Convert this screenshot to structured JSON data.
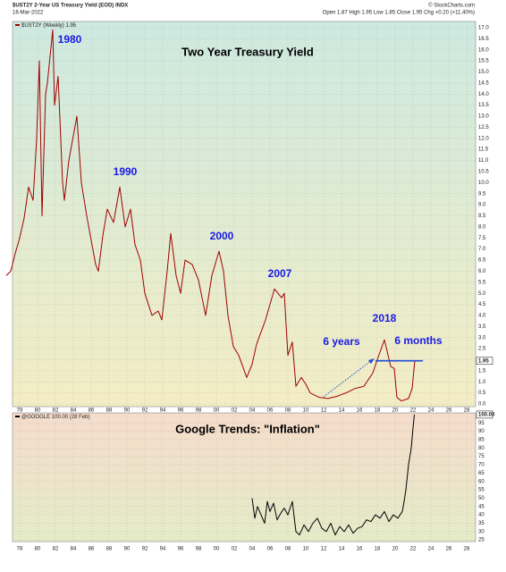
{
  "header": {
    "symbol": "$UST2Y 2-Year US Treasury Yield (EOD) INDX",
    "date": "16-Mar-2022",
    "quote": "Open 1.87  High 1.95  Low 1.85  Close 1.95  Chg +0.20 (+11.40%)",
    "credit": "© StockCharts.com"
  },
  "chart_data": [
    {
      "type": "line",
      "title": "Two Year Treasury Yield",
      "annotations": [
        "1980",
        "1990",
        "2000",
        "2007",
        "2018",
        "6 years",
        "6 months"
      ],
      "x": [
        1976.5,
        1977,
        1977.5,
        1978,
        1978.5,
        1979,
        1979.5,
        1979.9,
        1980.2,
        1980.5,
        1980.9,
        1981.1,
        1981.7,
        1981.9,
        1982.3,
        1982.8,
        1983,
        1983.5,
        1984.4,
        1984.9,
        1985.5,
        1986.5,
        1986.8,
        1987.3,
        1987.8,
        1988.5,
        1989.2,
        1989.8,
        1990.4,
        1990.9,
        1991.5,
        1992,
        1992.8,
        1993.5,
        1993.9,
        1994.5,
        1994.9,
        1995.5,
        1996,
        1996.5,
        1997.3,
        1998,
        1998.8,
        1999.5,
        2000.3,
        2000.8,
        2001.3,
        2001.9,
        2002.5,
        2003.4,
        2004,
        2004.5,
        2005.5,
        2006.5,
        2007.3,
        2007.6,
        2008,
        2008.5,
        2008.9,
        2009.5,
        2010,
        2010.5,
        2011.5,
        2012.5,
        2013.5,
        2014.5,
        2015.5,
        2016.5,
        2017.5,
        2018,
        2018.8,
        2019.5,
        2019.9,
        2020.2,
        2020.7,
        2021.5,
        2021.9,
        2022.2
      ],
      "series": [
        {
          "name": "$UST2Y (Weekly) 1.95",
          "color": "#a00000",
          "values": [
            5.8,
            6.0,
            6.8,
            7.5,
            8.4,
            9.8,
            9.2,
            12.0,
            15.5,
            8.5,
            14.0,
            14.5,
            16.9,
            13.5,
            14.8,
            10.0,
            9.2,
            11.0,
            13.0,
            10.0,
            8.5,
            6.3,
            6.0,
            7.6,
            8.8,
            8.2,
            9.8,
            8.0,
            8.8,
            7.2,
            6.5,
            5.0,
            4.0,
            4.2,
            3.8,
            6.0,
            7.7,
            5.8,
            5.0,
            6.5,
            6.3,
            5.6,
            4.0,
            5.8,
            6.9,
            6.0,
            4.0,
            2.6,
            2.2,
            1.2,
            1.8,
            2.7,
            3.8,
            5.2,
            4.8,
            5.0,
            2.2,
            2.8,
            0.8,
            1.2,
            0.9,
            0.5,
            0.3,
            0.25,
            0.35,
            0.5,
            0.7,
            0.8,
            1.4,
            2.0,
            2.9,
            1.7,
            1.6,
            0.3,
            0.14,
            0.25,
            0.7,
            1.95
          ]
        }
      ],
      "last_label": "1.95",
      "xlim": [
        1977.2,
        2029
      ],
      "ylim": [
        -0.12,
        17.28
      ],
      "grid": true,
      "xticks": [
        {
          "value": 1978,
          "label": "78"
        },
        {
          "value": 1980,
          "label": "80"
        },
        {
          "value": 1982,
          "label": "82"
        },
        {
          "value": 1984,
          "label": "84"
        },
        {
          "value": 1986,
          "label": "86"
        },
        {
          "value": 1988,
          "label": "88"
        },
        {
          "value": 1990,
          "label": "90"
        },
        {
          "value": 1992,
          "label": "92"
        },
        {
          "value": 1994,
          "label": "94"
        },
        {
          "value": 1996,
          "label": "96"
        },
        {
          "value": 1998,
          "label": "98"
        },
        {
          "value": 2000,
          "label": "00"
        },
        {
          "value": 2002,
          "label": "02"
        },
        {
          "value": 2004,
          "label": "04"
        },
        {
          "value": 2006,
          "label": "06"
        },
        {
          "value": 2008,
          "label": "08"
        },
        {
          "value": 2010,
          "label": "10"
        },
        {
          "value": 2012,
          "label": "12"
        },
        {
          "value": 2014,
          "label": "14"
        },
        {
          "value": 2016,
          "label": "16"
        },
        {
          "value": 2018,
          "label": "18"
        },
        {
          "value": 2020,
          "label": "20"
        },
        {
          "value": 2022,
          "label": "22"
        },
        {
          "value": 2024,
          "label": "24"
        },
        {
          "value": 2026,
          "label": "26"
        },
        {
          "value": 2028,
          "label": "28"
        }
      ],
      "yticks": [
        {
          "value": 0,
          "label": "0.0"
        },
        {
          "value": 0.5,
          "label": "0.5"
        },
        {
          "value": 1,
          "label": "1.0"
        },
        {
          "value": 1.5,
          "label": "1.5"
        },
        {
          "value": 2,
          "label": "2.0"
        },
        {
          "value": 2.5,
          "label": "2.5"
        },
        {
          "value": 3,
          "label": "3.0"
        },
        {
          "value": 3.5,
          "label": "3.5"
        },
        {
          "value": 4,
          "label": "4.0"
        },
        {
          "value": 4.5,
          "label": "4.5"
        },
        {
          "value": 5,
          "label": "5.0"
        },
        {
          "value": 5.5,
          "label": "5.5"
        },
        {
          "value": 6,
          "label": "6.0"
        },
        {
          "value": 6.5,
          "label": "6.5"
        },
        {
          "value": 7,
          "label": "7.0"
        },
        {
          "value": 7.5,
          "label": "7.5"
        },
        {
          "value": 8,
          "label": "8.0"
        },
        {
          "value": 8.5,
          "label": "8.5"
        },
        {
          "value": 9,
          "label": "9.0"
        },
        {
          "value": 9.5,
          "label": "9.5"
        },
        {
          "value": 10,
          "label": "10.0"
        },
        {
          "value": 10.5,
          "label": "10.5"
        },
        {
          "value": 11,
          "label": "11.0"
        },
        {
          "value": 11.5,
          "label": "11.5"
        },
        {
          "value": 12,
          "label": "12.0"
        },
        {
          "value": 12.5,
          "label": "12.5"
        },
        {
          "value": 13,
          "label": "13.0"
        },
        {
          "value": 13.5,
          "label": "13.5"
        },
        {
          "value": 14,
          "label": "14.0"
        },
        {
          "value": 14.5,
          "label": "14.5"
        },
        {
          "value": 15,
          "label": "15.0"
        },
        {
          "value": 15.5,
          "label": "15.5"
        },
        {
          "value": 16,
          "label": "16.0"
        },
        {
          "value": 16.5,
          "label": "16.5"
        },
        {
          "value": 17,
          "label": "17.0"
        }
      ]
    },
    {
      "type": "line",
      "title": "Google Trends: \"Inflation\"",
      "x": [
        2004,
        2004.3,
        2004.6,
        2005,
        2005.4,
        2005.7,
        2006,
        2006.4,
        2006.8,
        2007.2,
        2007.6,
        2008,
        2008.5,
        2008.9,
        2009.3,
        2009.8,
        2010.3,
        2010.8,
        2011.3,
        2011.8,
        2012.3,
        2012.8,
        2013.3,
        2013.8,
        2014.3,
        2014.8,
        2015.3,
        2015.8,
        2016.3,
        2016.8,
        2017.3,
        2017.8,
        2018.3,
        2018.8,
        2019.3,
        2019.8,
        2020.3,
        2020.8,
        2021,
        2021.2,
        2021.5,
        2021.8,
        2022,
        2022.15
      ],
      "series": [
        {
          "name": "@GOOGLE 100.00 (28 Feb)",
          "color": "#000000",
          "values": [
            50,
            38,
            45,
            40,
            35,
            48,
            42,
            47,
            37,
            41,
            44,
            40,
            48,
            30,
            28,
            34,
            30,
            35,
            38,
            32,
            30,
            35,
            28,
            33,
            30,
            34,
            29,
            32,
            33,
            37,
            36,
            40,
            38,
            42,
            36,
            40,
            38,
            42,
            48,
            55,
            70,
            80,
            92,
            100
          ]
        }
      ],
      "last_label": "100.00",
      "xlim": [
        1977.2,
        2029
      ],
      "ylim": [
        24,
        101
      ],
      "grid": true,
      "xticks": [
        {
          "value": 1978,
          "label": "78"
        },
        {
          "value": 1980,
          "label": "80"
        },
        {
          "value": 1982,
          "label": "82"
        },
        {
          "value": 1984,
          "label": "84"
        },
        {
          "value": 1986,
          "label": "86"
        },
        {
          "value": 1988,
          "label": "88"
        },
        {
          "value": 1990,
          "label": "90"
        },
        {
          "value": 1992,
          "label": "92"
        },
        {
          "value": 1994,
          "label": "94"
        },
        {
          "value": 1996,
          "label": "96"
        },
        {
          "value": 1998,
          "label": "98"
        },
        {
          "value": 2000,
          "label": "00"
        },
        {
          "value": 2002,
          "label": "02"
        },
        {
          "value": 2004,
          "label": "04"
        },
        {
          "value": 2006,
          "label": "06"
        },
        {
          "value": 2008,
          "label": "08"
        },
        {
          "value": 2010,
          "label": "10"
        },
        {
          "value": 2012,
          "label": "12"
        },
        {
          "value": 2014,
          "label": "14"
        },
        {
          "value": 2016,
          "label": "16"
        },
        {
          "value": 2018,
          "label": "18"
        },
        {
          "value": 2020,
          "label": "20"
        },
        {
          "value": 2022,
          "label": "22"
        },
        {
          "value": 2024,
          "label": "24"
        },
        {
          "value": 2026,
          "label": "26"
        },
        {
          "value": 2028,
          "label": "28"
        }
      ],
      "yticks": [
        25,
        30,
        35,
        40,
        45,
        50,
        55,
        60,
        65,
        70,
        75,
        80,
        85,
        90,
        95
      ]
    }
  ]
}
